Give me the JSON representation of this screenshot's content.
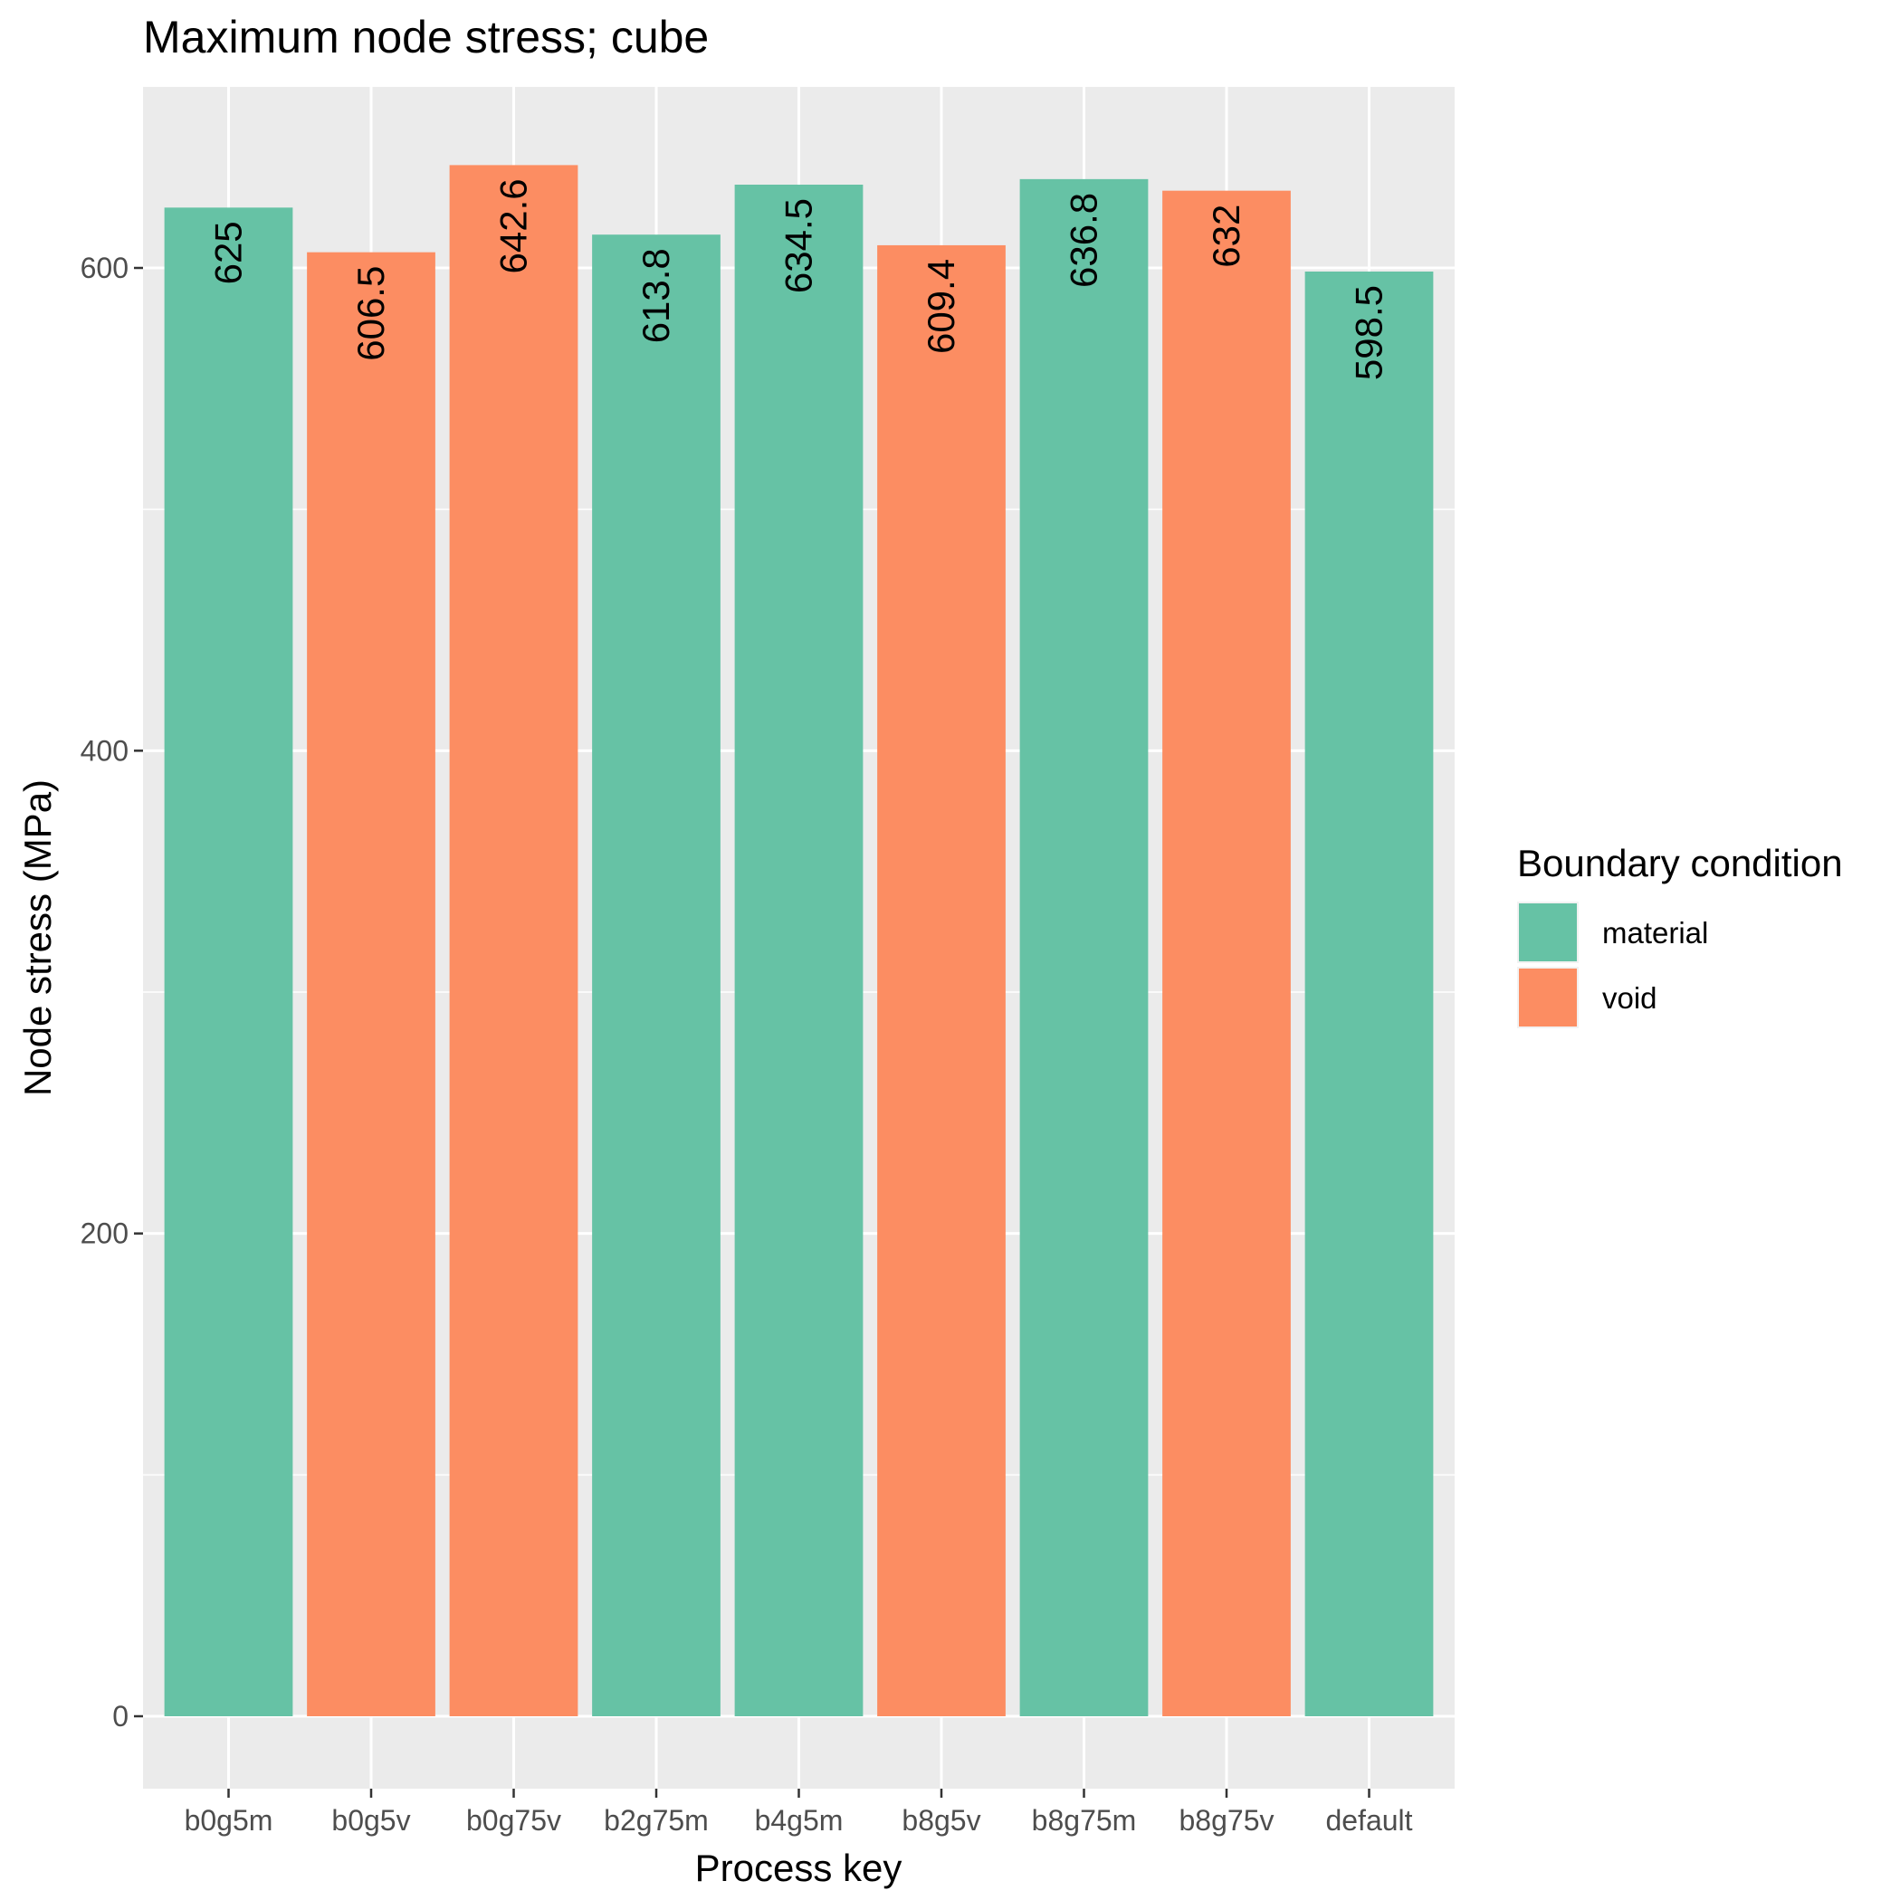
{
  "chart_data": {
    "type": "bar",
    "title": "Maximum node stress; cube",
    "xlabel": "Process key",
    "ylabel": "Node stress (MPa)",
    "categories": [
      "b0g5m",
      "b0g5v",
      "b0g75v",
      "b2g75m",
      "b4g5m",
      "b8g5v",
      "b8g75m",
      "b8g75v",
      "default"
    ],
    "values": [
      625,
      606.5,
      642.6,
      613.8,
      634.5,
      609.4,
      636.8,
      632,
      598.5
    ],
    "value_labels": [
      "625",
      "606.5",
      "642.6",
      "613.8",
      "634.5",
      "609.4",
      "636.8",
      "632",
      "598.5"
    ],
    "groups": [
      "material",
      "void",
      "void",
      "material",
      "material",
      "void",
      "material",
      "void",
      "material"
    ],
    "ylim": [
      -30,
      675
    ],
    "yticks": [
      0,
      200,
      400,
      600
    ],
    "ytick_labels": [
      "0",
      "200",
      "400",
      "600"
    ],
    "grid": true,
    "legend": {
      "title": "Boundary condition",
      "position": "right",
      "entries": [
        {
          "label": "material",
          "color": "#66c2a5"
        },
        {
          "label": "void",
          "color": "#fc8d62"
        }
      ]
    },
    "colors": {
      "material": "#66c2a5",
      "void": "#fc8d62",
      "panel": "#ebebeb",
      "grid": "#ffffff"
    }
  }
}
